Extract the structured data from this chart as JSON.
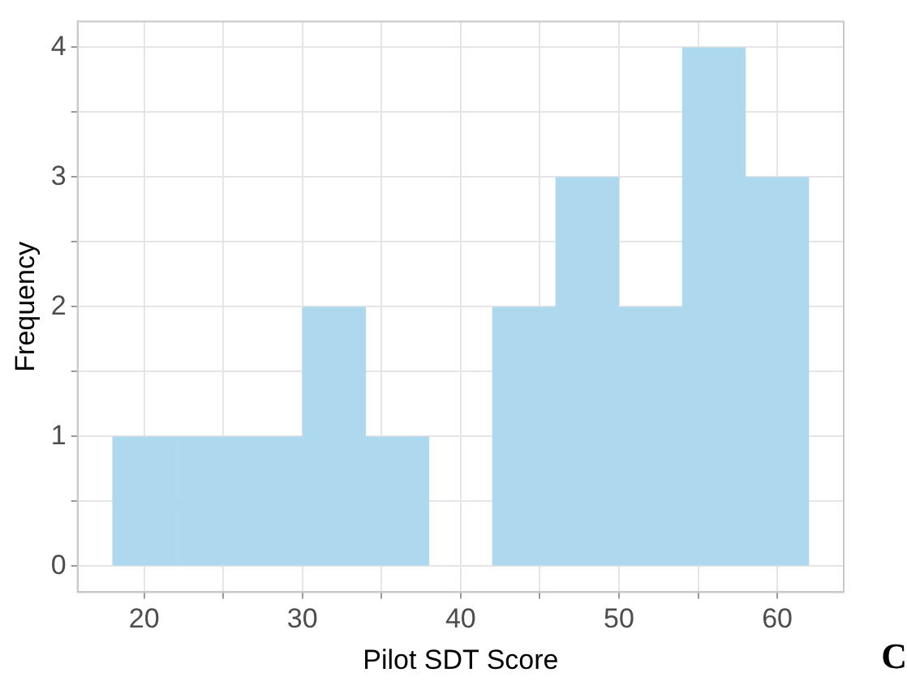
{
  "chart_data": {
    "type": "histogram",
    "xlabel": "Pilot SDT Score",
    "ylabel": "Frequency",
    "bins": [
      18,
      22,
      26,
      30,
      34,
      38,
      42,
      46,
      50,
      54,
      58,
      62
    ],
    "values": [
      1,
      1,
      1,
      2,
      1,
      0,
      2,
      3,
      2,
      4,
      3
    ],
    "color": "#add8ee",
    "xlim": [
      15.8,
      64.2
    ],
    "xticks": [
      20,
      {
        "value": 25,
        "label": null
      },
      30,
      {
        "value": 35,
        "label": null
      },
      40,
      {
        "value": 45,
        "label": null
      },
      50,
      {
        "value": 55,
        "label": null
      },
      60
    ],
    "ylim": [
      -0.2,
      4.2
    ],
    "yticks": [
      0,
      {
        "value": 0.5,
        "label": null
      },
      1,
      {
        "value": 1.5,
        "label": null
      },
      2,
      {
        "value": 2.5,
        "label": null
      },
      3,
      {
        "value": 3.5,
        "label": null
      },
      4
    ],
    "grid": true,
    "annotations": [
      "C"
    ]
  }
}
